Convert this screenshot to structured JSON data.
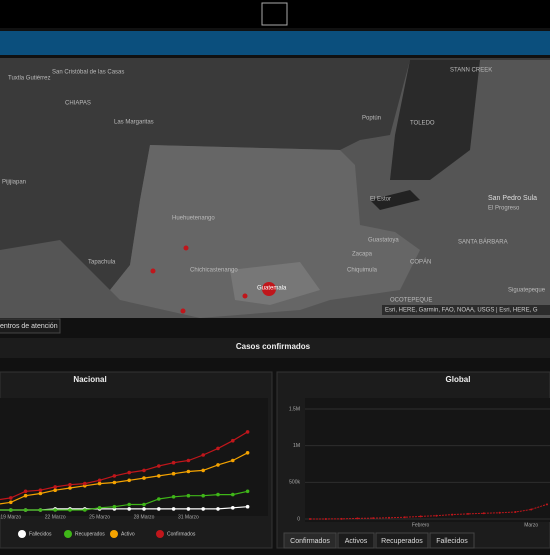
{
  "map": {
    "labels": [
      "Tuxtla Gutiérrez",
      "San Cristóbal de las Casas",
      "CHIAPAS",
      "Las Margaritas",
      "Pijijiapan",
      "Tapachula",
      "Huehuetenango",
      "Chichicastenango",
      "Guatemala",
      "Zacapa",
      "Chiquimula",
      "Guastatoya",
      "El Estor",
      "Poptún",
      "TOLEDO",
      "STANN CREEK",
      "San Pedro Sula",
      "El Progreso",
      "SANTA BÁRBARA",
      "COPÁN",
      "Siguatepeque",
      "OCOTEPEQUE"
    ],
    "attribution": "Esri, HERE, Garmin, FAO, NOAA, USGS | Esri, HERE, G"
  },
  "button": "entros de atención",
  "section_title": "Casos confirmados",
  "tabs": [
    "Confirmados",
    "Activos",
    "Recuperados",
    "Fallecidos"
  ],
  "chart_data": [
    {
      "type": "line",
      "title": "Nacional",
      "categories": [
        null,
        "19 Marzo",
        null,
        null,
        "22 Marzo",
        null,
        null,
        "25 Marzo",
        null,
        null,
        "28 Marzo",
        null,
        null,
        "31 Marzo",
        null,
        null,
        null,
        null
      ],
      "series": [
        {
          "name": "Fallecidos",
          "color": "#ffffff",
          "values": [
            0,
            0,
            0,
            0,
            1,
            1,
            1,
            1,
            1,
            1,
            1,
            1,
            1,
            1,
            1,
            1,
            2,
            3
          ]
        },
        {
          "name": "Recuperados",
          "color": "#3fb618",
          "values": [
            0,
            0,
            0,
            0,
            0,
            0,
            0,
            2,
            3,
            5,
            5,
            10,
            12,
            13,
            13,
            14,
            14,
            17
          ]
        },
        {
          "name": "Activo",
          "color": "#f5a300",
          "values": [
            5,
            7,
            13,
            15,
            18,
            20,
            22,
            24,
            25,
            27,
            29,
            31,
            33,
            35,
            36,
            41,
            45,
            52
          ]
        },
        {
          "name": "Confirmados",
          "color": "#c0161b",
          "values": [
            9,
            11,
            17,
            18,
            21,
            23,
            24,
            27,
            31,
            34,
            36,
            40,
            43,
            45,
            50,
            56,
            63,
            71
          ]
        }
      ],
      "ylim": [
        0,
        100
      ],
      "legend": "bottom"
    },
    {
      "type": "line",
      "title": "Global",
      "categories": [
        null,
        null,
        null,
        null,
        null,
        null,
        null,
        "Febrero",
        null,
        null,
        null,
        null,
        null,
        null,
        "Marzo",
        null
      ],
      "color": "#c0161b",
      "values": [
        0,
        500,
        2000,
        8000,
        12000,
        17000,
        24000,
        35000,
        45000,
        60000,
        70000,
        78000,
        85000,
        95000,
        130000,
        200000
      ],
      "ylim": [
        0,
        1650000
      ],
      "yticks": [
        0,
        {
          "value": 500000,
          "label": "500k"
        },
        {
          "value": 1000000,
          "label": "1M"
        },
        {
          "value": 1500000,
          "label": "1.5M"
        }
      ],
      "grid": true
    }
  ]
}
